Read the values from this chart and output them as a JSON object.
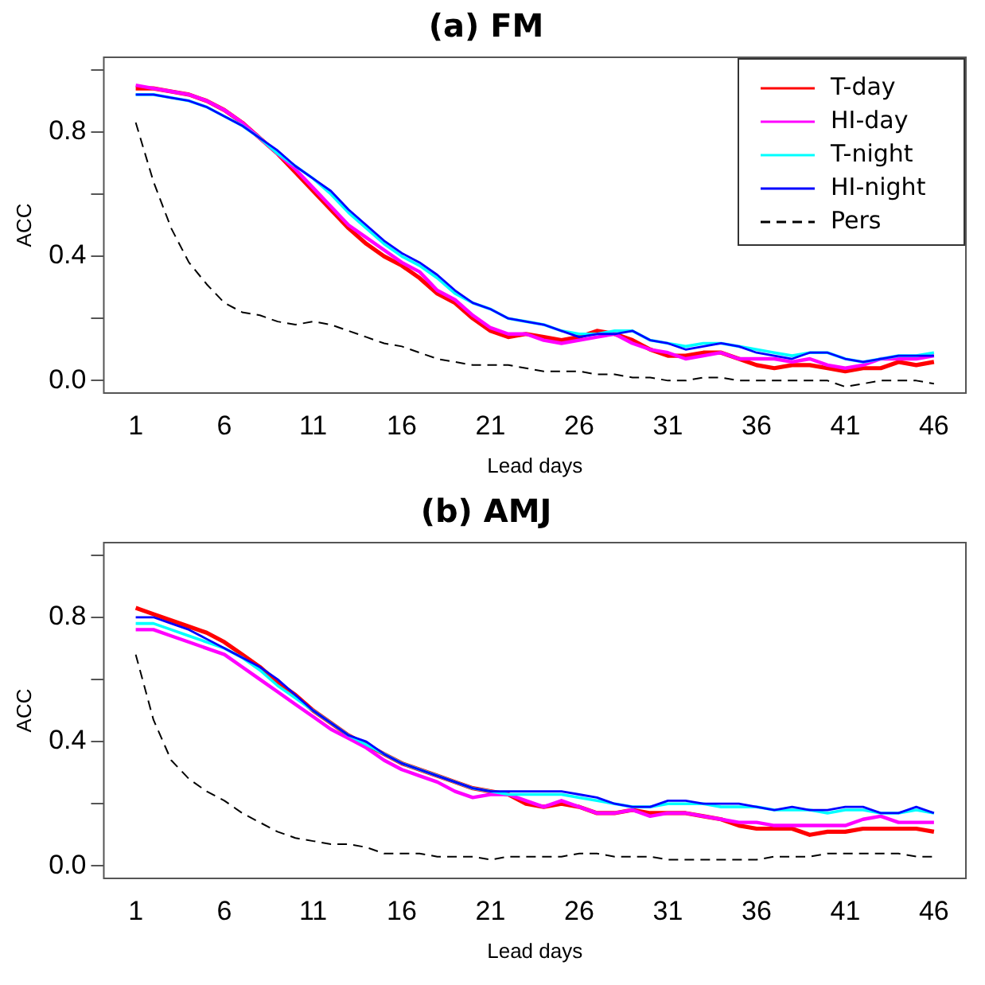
{
  "chart_data": [
    {
      "type": "line",
      "title": "(a) FM",
      "xlabel": "Lead days",
      "ylabel": "ACC",
      "x": [
        1,
        2,
        3,
        4,
        5,
        6,
        7,
        8,
        9,
        10,
        11,
        12,
        13,
        14,
        15,
        16,
        17,
        18,
        19,
        20,
        21,
        22,
        23,
        24,
        25,
        26,
        27,
        28,
        29,
        30,
        31,
        32,
        33,
        34,
        35,
        36,
        37,
        38,
        39,
        40,
        41,
        42,
        43,
        44,
        45,
        46
      ],
      "xlim": [
        -0.8,
        47.8
      ],
      "xticks": [
        1,
        6,
        11,
        16,
        21,
        26,
        31,
        36,
        41,
        46
      ],
      "ylim": [
        -0.04,
        1.04
      ],
      "yticks": [
        {
          "value": 0,
          "label": "0.0"
        },
        {
          "value": 0.2,
          "label": null
        },
        {
          "value": 0.4,
          "label": "0.4"
        },
        {
          "value": 0.6,
          "label": null
        },
        {
          "value": 0.8,
          "label": "0.8"
        },
        {
          "value": 1,
          "label": null
        }
      ],
      "grid": false,
      "legend": "top right",
      "marker": "none",
      "series": [
        {
          "name": "T-day",
          "color": "#ff0000",
          "line_style": "solid",
          "values": [
            0.94,
            0.94,
            0.93,
            0.92,
            0.9,
            0.87,
            0.83,
            0.78,
            0.73,
            0.67,
            0.61,
            0.55,
            0.49,
            0.44,
            0.4,
            0.37,
            0.33,
            0.28,
            0.25,
            0.2,
            0.16,
            0.14,
            0.15,
            0.14,
            0.13,
            0.14,
            0.16,
            0.15,
            0.13,
            0.1,
            0.08,
            0.08,
            0.09,
            0.09,
            0.07,
            0.05,
            0.04,
            0.05,
            0.05,
            0.04,
            0.03,
            0.04,
            0.04,
            0.06,
            0.05,
            0.06
          ]
        },
        {
          "name": "HI-day",
          "color": "#ff00ff",
          "line_style": "solid",
          "values": [
            0.95,
            0.94,
            0.93,
            0.92,
            0.9,
            0.87,
            0.83,
            0.78,
            0.73,
            0.68,
            0.62,
            0.56,
            0.5,
            0.46,
            0.42,
            0.38,
            0.35,
            0.29,
            0.26,
            0.21,
            0.17,
            0.15,
            0.15,
            0.13,
            0.12,
            0.13,
            0.14,
            0.15,
            0.12,
            0.1,
            0.09,
            0.07,
            0.08,
            0.09,
            0.07,
            0.07,
            0.07,
            0.06,
            0.07,
            0.05,
            0.04,
            0.05,
            0.07,
            0.07,
            0.07,
            0.08
          ]
        },
        {
          "name": "T-night",
          "color": "#00ffff",
          "line_style": "solid",
          "values": [
            0.92,
            0.92,
            0.91,
            0.9,
            0.88,
            0.85,
            0.82,
            0.78,
            0.73,
            0.69,
            0.65,
            0.6,
            0.54,
            0.49,
            0.44,
            0.4,
            0.37,
            0.33,
            0.28,
            0.25,
            0.23,
            0.2,
            0.19,
            0.18,
            0.16,
            0.15,
            0.15,
            0.16,
            0.16,
            0.13,
            0.12,
            0.11,
            0.12,
            0.12,
            0.11,
            0.1,
            0.09,
            0.08,
            0.09,
            0.09,
            0.07,
            0.06,
            0.07,
            0.08,
            0.08,
            0.09
          ]
        },
        {
          "name": "HI-night",
          "color": "#0000ff",
          "line_style": "solid",
          "values": [
            0.92,
            0.92,
            0.91,
            0.9,
            0.88,
            0.85,
            0.82,
            0.78,
            0.74,
            0.69,
            0.65,
            0.61,
            0.55,
            0.5,
            0.45,
            0.41,
            0.38,
            0.34,
            0.29,
            0.25,
            0.23,
            0.2,
            0.19,
            0.18,
            0.16,
            0.14,
            0.15,
            0.15,
            0.16,
            0.13,
            0.12,
            0.1,
            0.11,
            0.12,
            0.11,
            0.09,
            0.08,
            0.07,
            0.09,
            0.09,
            0.07,
            0.06,
            0.07,
            0.08,
            0.08,
            0.08
          ]
        },
        {
          "name": "Pers",
          "color": "#000000",
          "line_style": "dashed",
          "values": [
            0.83,
            0.64,
            0.49,
            0.38,
            0.31,
            0.25,
            0.22,
            0.21,
            0.19,
            0.18,
            0.19,
            0.18,
            0.16,
            0.14,
            0.12,
            0.11,
            0.09,
            0.07,
            0.06,
            0.05,
            0.05,
            0.05,
            0.04,
            0.03,
            0.03,
            0.03,
            0.02,
            0.02,
            0.01,
            0.01,
            0.0,
            0.0,
            0.01,
            0.01,
            0.0,
            0.0,
            0.0,
            0.0,
            0.0,
            0.0,
            -0.02,
            -0.01,
            0.0,
            0.0,
            0.0,
            -0.01
          ]
        }
      ]
    },
    {
      "type": "line",
      "title": "(b) AMJ",
      "xlabel": "Lead days",
      "ylabel": "ACC",
      "x": [
        1,
        2,
        3,
        4,
        5,
        6,
        7,
        8,
        9,
        10,
        11,
        12,
        13,
        14,
        15,
        16,
        17,
        18,
        19,
        20,
        21,
        22,
        23,
        24,
        25,
        26,
        27,
        28,
        29,
        30,
        31,
        32,
        33,
        34,
        35,
        36,
        37,
        38,
        39,
        40,
        41,
        42,
        43,
        44,
        45,
        46
      ],
      "xlim": [
        -0.8,
        47.8
      ],
      "xticks": [
        1,
        6,
        11,
        16,
        21,
        26,
        31,
        36,
        41,
        46
      ],
      "ylim": [
        -0.04,
        1.04
      ],
      "yticks": [
        {
          "value": 0,
          "label": "0.0"
        },
        {
          "value": 0.2,
          "label": null
        },
        {
          "value": 0.4,
          "label": "0.4"
        },
        {
          "value": 0.6,
          "label": null
        },
        {
          "value": 0.8,
          "label": "0.8"
        },
        {
          "value": 1,
          "label": null
        }
      ],
      "grid": false,
      "marker": "none",
      "series": [
        {
          "color": "#ff0000",
          "line_style": "solid",
          "values": [
            0.83,
            0.81,
            0.79,
            0.77,
            0.75,
            0.72,
            0.68,
            0.64,
            0.59,
            0.55,
            0.5,
            0.46,
            0.42,
            0.39,
            0.36,
            0.33,
            0.31,
            0.29,
            0.27,
            0.25,
            0.24,
            0.23,
            0.2,
            0.19,
            0.2,
            0.19,
            0.17,
            0.17,
            0.18,
            0.17,
            0.17,
            0.17,
            0.16,
            0.15,
            0.13,
            0.12,
            0.12,
            0.12,
            0.1,
            0.11,
            0.11,
            0.12,
            0.12,
            0.12,
            0.12,
            0.11
          ]
        },
        {
          "color": "#ff00ff",
          "line_style": "solid",
          "values": [
            0.76,
            0.76,
            0.74,
            0.72,
            0.7,
            0.68,
            0.64,
            0.6,
            0.56,
            0.52,
            0.48,
            0.44,
            0.41,
            0.38,
            0.34,
            0.31,
            0.29,
            0.27,
            0.24,
            0.22,
            0.23,
            0.23,
            0.21,
            0.19,
            0.21,
            0.19,
            0.17,
            0.17,
            0.18,
            0.16,
            0.17,
            0.17,
            0.16,
            0.15,
            0.14,
            0.14,
            0.13,
            0.13,
            0.13,
            0.13,
            0.13,
            0.15,
            0.16,
            0.14,
            0.14,
            0.14
          ]
        },
        {
          "color": "#00ffff",
          "line_style": "solid",
          "values": [
            0.78,
            0.78,
            0.76,
            0.74,
            0.72,
            0.7,
            0.67,
            0.63,
            0.58,
            0.54,
            0.5,
            0.46,
            0.42,
            0.39,
            0.36,
            0.33,
            0.31,
            0.29,
            0.27,
            0.25,
            0.24,
            0.23,
            0.23,
            0.23,
            0.23,
            0.22,
            0.21,
            0.2,
            0.19,
            0.19,
            0.2,
            0.2,
            0.2,
            0.19,
            0.19,
            0.19,
            0.18,
            0.18,
            0.18,
            0.17,
            0.18,
            0.18,
            0.17,
            0.17,
            0.18,
            0.17
          ]
        },
        {
          "color": "#0000ff",
          "line_style": "solid",
          "values": [
            0.8,
            0.8,
            0.78,
            0.76,
            0.73,
            0.7,
            0.67,
            0.64,
            0.6,
            0.55,
            0.5,
            0.46,
            0.42,
            0.4,
            0.36,
            0.33,
            0.31,
            0.29,
            0.27,
            0.25,
            0.24,
            0.24,
            0.24,
            0.24,
            0.24,
            0.23,
            0.22,
            0.2,
            0.19,
            0.19,
            0.21,
            0.21,
            0.2,
            0.2,
            0.2,
            0.19,
            0.18,
            0.19,
            0.18,
            0.18,
            0.19,
            0.19,
            0.17,
            0.17,
            0.19,
            0.17
          ]
        },
        {
          "color": "#000000",
          "line_style": "dashed",
          "values": [
            0.68,
            0.47,
            0.34,
            0.28,
            0.24,
            0.21,
            0.17,
            0.14,
            0.11,
            0.09,
            0.08,
            0.07,
            0.07,
            0.06,
            0.04,
            0.04,
            0.04,
            0.03,
            0.03,
            0.03,
            0.02,
            0.03,
            0.03,
            0.03,
            0.03,
            0.04,
            0.04,
            0.03,
            0.03,
            0.03,
            0.02,
            0.02,
            0.02,
            0.02,
            0.02,
            0.02,
            0.03,
            0.03,
            0.03,
            0.04,
            0.04,
            0.04,
            0.04,
            0.04,
            0.03,
            0.03
          ]
        }
      ]
    }
  ]
}
